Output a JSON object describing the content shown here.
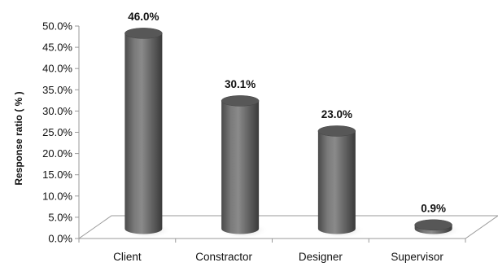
{
  "chart_data": {
    "type": "bar",
    "title": "",
    "xlabel": "",
    "ylabel": "Response ratio ( % )",
    "categories": [
      "Client",
      "Constractor",
      "Designer",
      "Supervisor"
    ],
    "values": [
      46.0,
      30.1,
      23.0,
      0.9
    ],
    "data_labels": [
      "46.0%",
      "30.1%",
      "23.0%",
      "0.9%"
    ],
    "ylim": [
      0,
      50
    ],
    "yticks": [
      0,
      5,
      10,
      15,
      20,
      25,
      30,
      35,
      40,
      45,
      50
    ],
    "ytick_labels": [
      "0.0%",
      "5.0%",
      "10.0%",
      "15.0%",
      "20.0%",
      "25.0%",
      "30.0%",
      "35.0%",
      "40.0%",
      "45.0%",
      "50.0%"
    ],
    "style": "3d-cylinder",
    "bar_color": "#666666",
    "grid": false,
    "legend": "none"
  }
}
